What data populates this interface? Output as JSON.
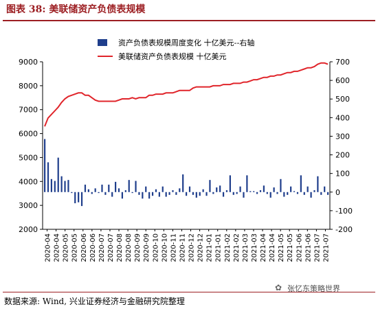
{
  "figure": {
    "title": "图表 38:  美联储资产负债表规模",
    "source": "数据来源: Wind, 兴业证券经济与金融研究院整理",
    "watermark": "张忆东策略世界"
  },
  "colors": {
    "bar": "#1f3e8c",
    "line": "#e0242a",
    "accent": "#9c1e22"
  },
  "chart_data": {
    "type": "bar+line",
    "legend": [
      "资产负债表规模周度变化  十亿美元--右轴",
      "美联储资产负债表规模  十亿美元"
    ],
    "legend_placement": "top-center",
    "left_axis": {
      "ylim": [
        2000,
        9000
      ],
      "ticks": [
        2000,
        3000,
        4000,
        5000,
        6000,
        7000,
        8000,
        9000
      ]
    },
    "right_axis": {
      "ylim": [
        -200,
        700
      ],
      "ticks": [
        -200,
        -100,
        0,
        100,
        200,
        300,
        400,
        500,
        600,
        700
      ]
    },
    "x_tick_labels": [
      "2020-04",
      "2020-04",
      "2020-05",
      "2020-05",
      "2020-06",
      "2020-06",
      "2020-07",
      "2020-07",
      "2020-08",
      "2020-08",
      "2020-09",
      "2020-09",
      "2020-10",
      "2020-10",
      "2020-11",
      "2020-11",
      "2020-12",
      "2020-12",
      "2021-01",
      "2021-01",
      "2021-02",
      "2021-02",
      "2021-03",
      "2021-03",
      "2021-04",
      "2021-04",
      "2021-05",
      "2021-05",
      "2021-06",
      "2021-06",
      "2021-07",
      "2021-07"
    ],
    "series": [
      {
        "name": "资产负债表规模周度变化  十亿美元--右轴",
        "type": "bar",
        "axis": "right",
        "values": [
          285,
          160,
          70,
          60,
          185,
          85,
          60,
          65,
          -5,
          -60,
          -55,
          -75,
          40,
          15,
          -10,
          20,
          -5,
          40,
          -15,
          40,
          -25,
          55,
          20,
          -35,
          10,
          65,
          -5,
          60,
          -15,
          -35,
          30,
          -35,
          -20,
          15,
          -25,
          30,
          -25,
          -15,
          10,
          -15,
          20,
          95,
          -20,
          30,
          -15,
          -30,
          -20,
          15,
          -20,
          65,
          -10,
          25,
          35,
          -25,
          10,
          90,
          -15,
          -10,
          30,
          -30,
          90,
          5,
          5,
          -10,
          10,
          35,
          -10,
          -30,
          25,
          -10,
          70,
          -25,
          -15,
          30,
          5,
          -10,
          90,
          -15,
          30,
          -30,
          10,
          85,
          -15,
          30,
          -15
        ],
        "bar_color": "#1f3e8c"
      },
      {
        "name": "美联储资产负债表规模  十亿美元",
        "type": "line",
        "axis": "left",
        "values": [
          6300,
          6650,
          6800,
          6950,
          7100,
          7300,
          7450,
          7550,
          7600,
          7650,
          7700,
          7700,
          7600,
          7600,
          7500,
          7400,
          7350,
          7350,
          7350,
          7350,
          7350,
          7350,
          7400,
          7450,
          7450,
          7450,
          7500,
          7450,
          7500,
          7500,
          7500,
          7600,
          7600,
          7650,
          7650,
          7650,
          7700,
          7700,
          7700,
          7750,
          7800,
          7800,
          7800,
          7800,
          7900,
          7950,
          7950,
          7950,
          7950,
          7950,
          8000,
          8000,
          8000,
          8050,
          8050,
          8050,
          8100,
          8100,
          8100,
          8150,
          8150,
          8200,
          8250,
          8250,
          8300,
          8350,
          8350,
          8400,
          8400,
          8450,
          8450,
          8500,
          8550,
          8550,
          8600,
          8600,
          8650,
          8700,
          8750,
          8750,
          8800,
          8900,
          8950,
          8950,
          8900
        ]
      }
    ]
  }
}
